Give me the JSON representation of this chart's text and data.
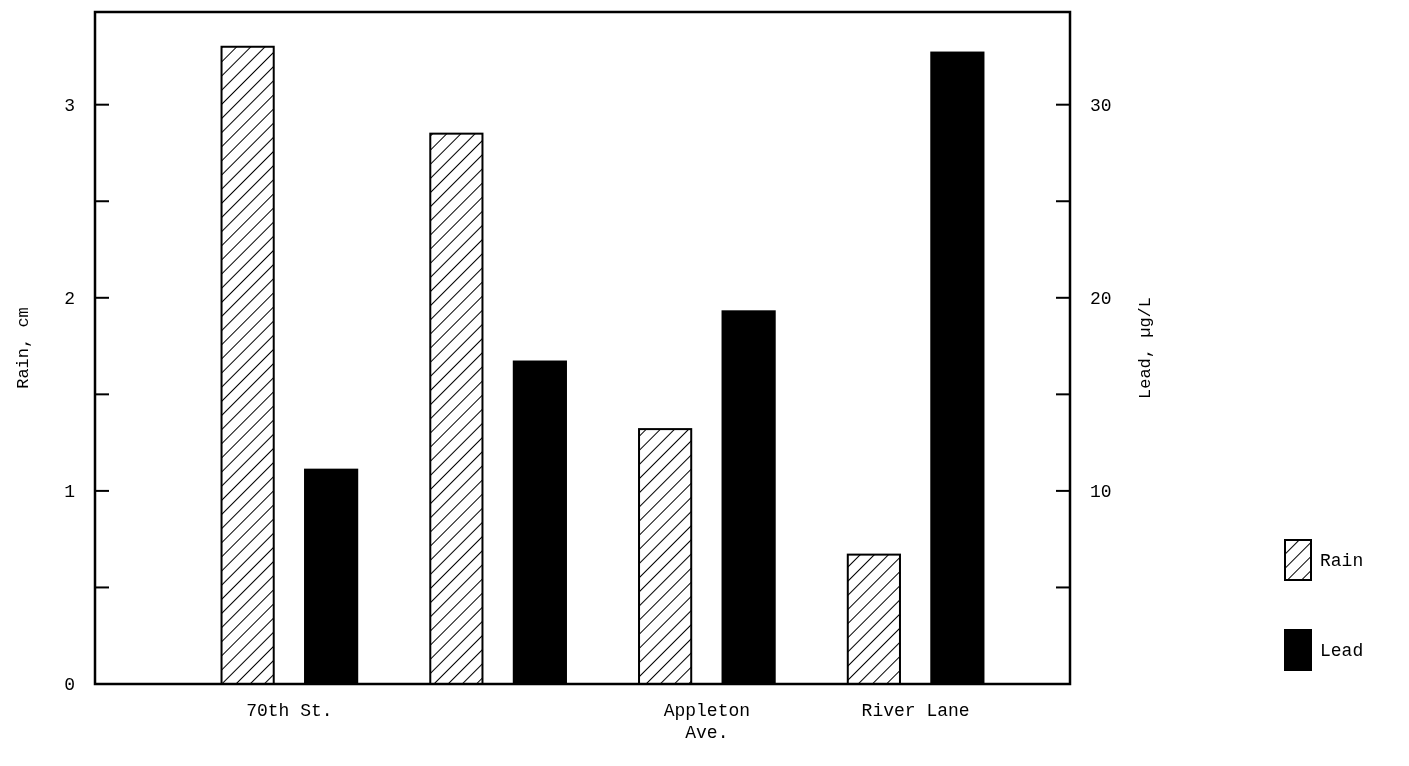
{
  "chart_data": {
    "type": "bar",
    "categories": [
      "70th St.",
      null,
      "Appleton\nAve.",
      "River Lane"
    ],
    "ylabel": "Rain, cm",
    "y2label": "Lead, µg/L",
    "series": [
      {
        "name": "Rain",
        "color": "#000000",
        "values": [
          3.3,
          2.85,
          1.32,
          0.67
        ]
      },
      {
        "name": "Lead",
        "color": "#000000",
        "axis": "y2",
        "values": [
          11.1,
          16.7,
          19.3,
          32.7
        ]
      }
    ],
    "ylim": [
      0,
      3.48
    ],
    "yticks": [
      0,
      {
        "value": 0.5,
        "label": null
      },
      1,
      {
        "value": 1.5,
        "label": null
      },
      2,
      {
        "value": 2.5,
        "label": null
      },
      3
    ],
    "y2lim": [
      0,
      34.8
    ],
    "y2ticks": [
      {
        "value": 5,
        "label": null
      },
      10,
      {
        "value": 15,
        "label": null
      },
      20,
      {
        "value": 25,
        "label": null
      },
      30
    ],
    "grid": false,
    "legend": "right"
  }
}
